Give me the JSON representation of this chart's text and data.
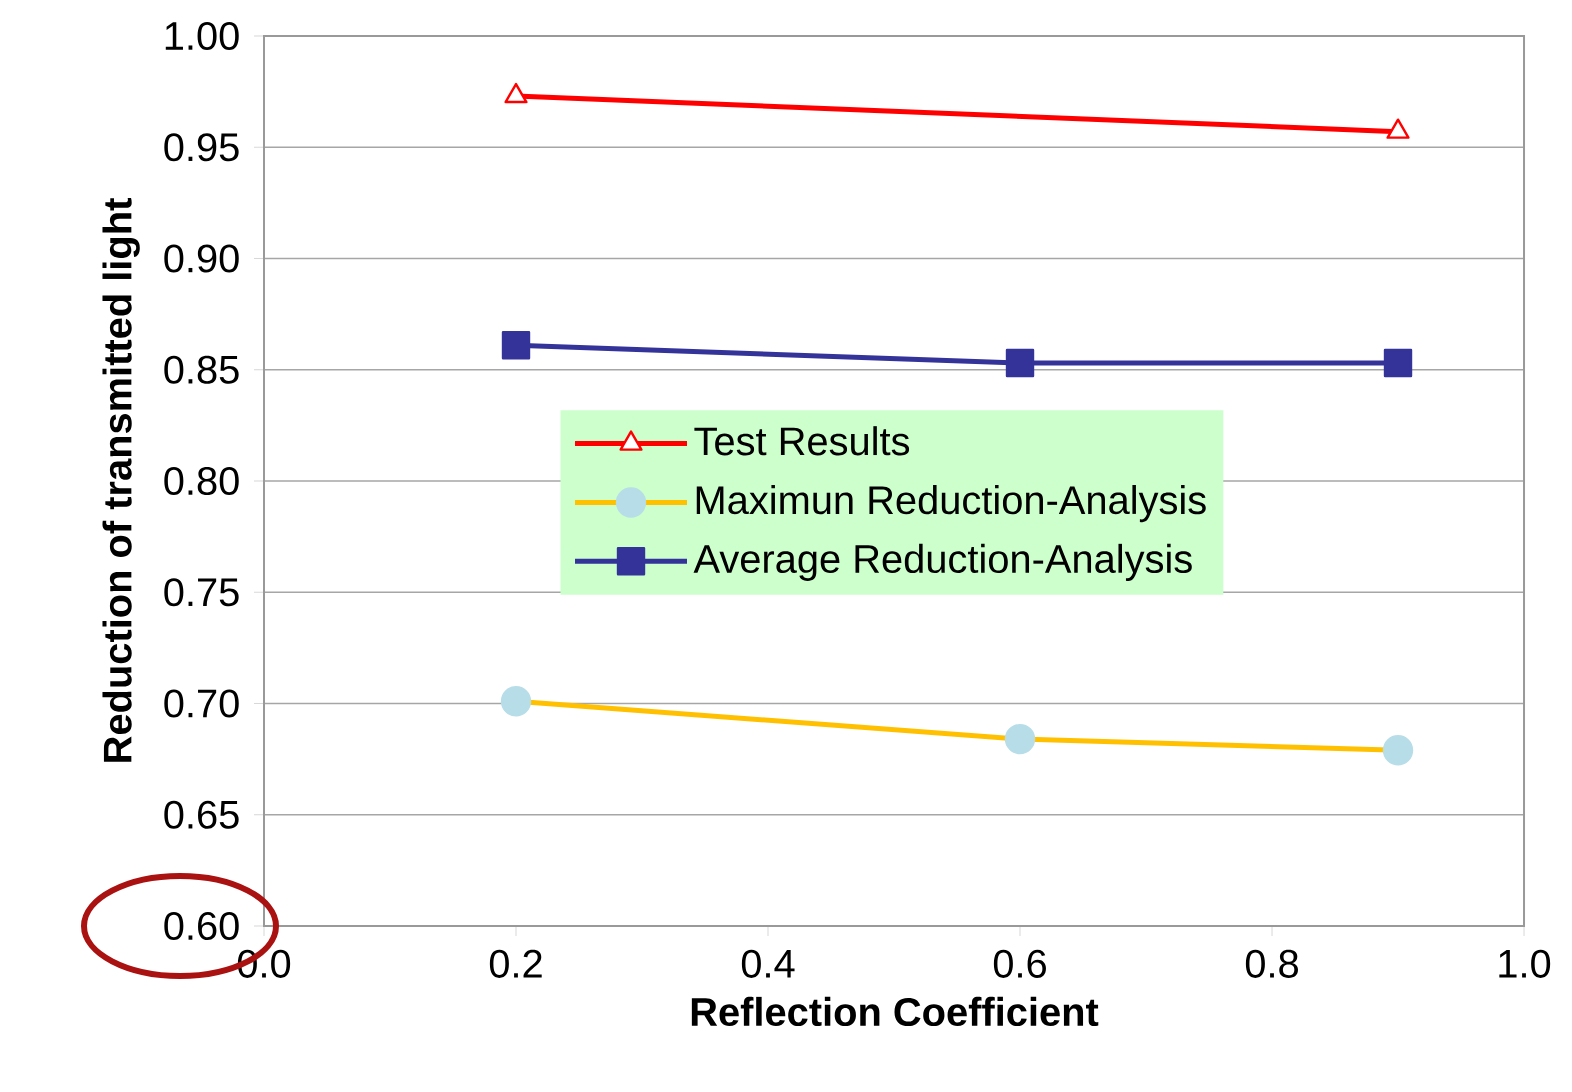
{
  "chart_data": {
    "type": "line",
    "xlabel": "Reflection Coefficient",
    "ylabel": "Reduction of transmitted light",
    "xlim": [
      0,
      1
    ],
    "ylim": [
      0.6,
      1.0
    ],
    "xticks": [
      {
        "value": 0,
        "label": "0.0"
      },
      {
        "value": 0.2,
        "label": "0.2"
      },
      {
        "value": 0.4,
        "label": "0.4"
      },
      {
        "value": 0.6,
        "label": "0.6"
      },
      {
        "value": 0.8,
        "label": "0.8"
      },
      {
        "value": 1.0,
        "label": "1.0"
      }
    ],
    "yticks": [
      {
        "value": 0.6,
        "label": "0.60"
      },
      {
        "value": 0.65,
        "label": "0.65"
      },
      {
        "value": 0.7,
        "label": "0.70"
      },
      {
        "value": 0.75,
        "label": "0.75"
      },
      {
        "value": 0.8,
        "label": "0.80"
      },
      {
        "value": 0.85,
        "label": "0.85"
      },
      {
        "value": 0.9,
        "label": "0.90"
      },
      {
        "value": 0.95,
        "label": "0.95"
      },
      {
        "value": 1.0,
        "label": "1.00"
      }
    ],
    "grid": "y",
    "legend": "center",
    "line_style": "solid",
    "series": [
      {
        "name": "Test Results",
        "color": "#ff0000",
        "marker": "triangle",
        "x": [
          0.2,
          0.9
        ],
        "values": [
          0.973,
          0.957
        ]
      },
      {
        "name": "Maximun Reduction-Analysis",
        "color": "#ffc000",
        "marker": "circle",
        "x": [
          0.2,
          0.6,
          0.9
        ],
        "values": [
          0.701,
          0.684,
          0.679
        ]
      },
      {
        "name": "Average Reduction-Analysis",
        "color": "#333399",
        "marker": "square",
        "x": [
          0.2,
          0.6,
          0.9
        ],
        "values": [
          0.861,
          0.853,
          0.853
        ]
      }
    ]
  }
}
